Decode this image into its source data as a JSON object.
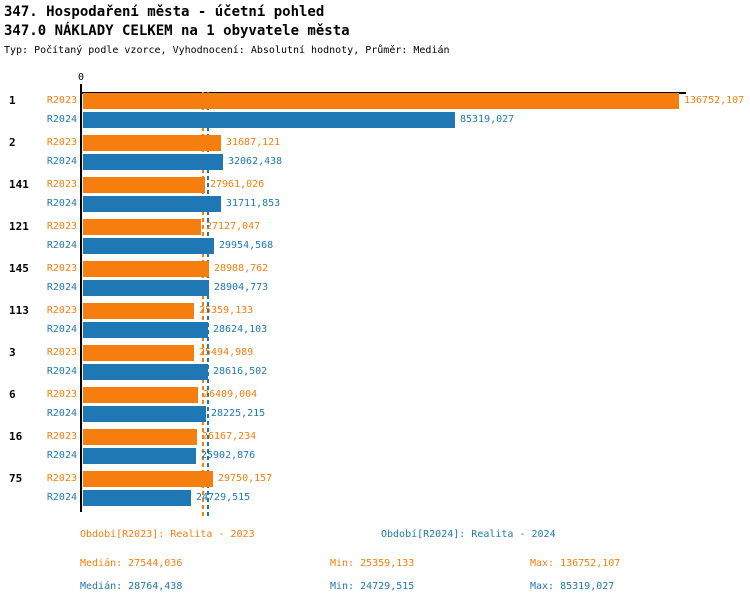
{
  "header": {
    "title": "347. Hospodaření města - účetní pohled",
    "subtitle": "347.0 NÁKLADY CELKEM na 1 obyvatele města",
    "meta": "Typ: Počítaný podle vzorce, Vyhodnocení: Absolutní hodnoty, Průměr: Medián"
  },
  "colors": {
    "series_2023": "#f57e0e",
    "series_2024": "#1f77b4",
    "axis": "#000000",
    "text": "#000000"
  },
  "chart_data": {
    "type": "bar",
    "orientation": "horizontal",
    "title": "347.0 NÁKLADY CELKEM na 1 obyvatele města",
    "xlabel": "",
    "ylabel": "",
    "xlim": [
      0,
      136752.107
    ],
    "grid": false,
    "axis": {
      "zero_label": "0"
    },
    "categories": [
      "1",
      "2",
      "141",
      "121",
      "145",
      "113",
      "3",
      "6",
      "16",
      "75"
    ],
    "series": [
      {
        "name": "R2023",
        "color": "#f57e0e",
        "values": [
          136752.107,
          31687.121,
          27961.026,
          27127.047,
          28988.762,
          25359.133,
          25494.989,
          26409.004,
          26167.234,
          29750.157
        ],
        "labels": [
          "136752,107",
          "31687,121",
          "27961,026",
          "27127,047",
          "28988,762",
          "25359,133",
          "25494,989",
          "26409,004",
          "26167,234",
          "29750,157"
        ]
      },
      {
        "name": "R2024",
        "color": "#1f77b4",
        "values": [
          85319.027,
          32062.438,
          31711.853,
          29954.568,
          28904.773,
          28624.103,
          28616.502,
          28225.215,
          25902.876,
          24729.515
        ],
        "labels": [
          "85319,027",
          "32062,438",
          "31711,853",
          "29954,568",
          "28904,773",
          "28624,103",
          "28616,502",
          "28225,215",
          "25902,876",
          "24729,515"
        ]
      }
    ],
    "medians": [
      {
        "series": "R2023",
        "value": 27544.036,
        "label": "27544,036",
        "color": "#f57e0e"
      },
      {
        "series": "R2024",
        "value": 28764.438,
        "label": "28764,438",
        "color": "#1f77b4"
      }
    ]
  },
  "footer": {
    "legend": [
      {
        "label": "Období[R2023]: Realita - 2023",
        "color": "#f57e0e"
      },
      {
        "label": "Období[R2024]: Realita - 2024",
        "color": "#1f77b4"
      }
    ],
    "stats_2023": {
      "median": "Medián: 27544,036",
      "min": "Min: 25359,133",
      "max": "Max: 136752,107"
    },
    "stats_2024": {
      "median": "Medián: 28764,438",
      "min": "Min: 24729,515",
      "max": "Max: 85319,027"
    }
  }
}
